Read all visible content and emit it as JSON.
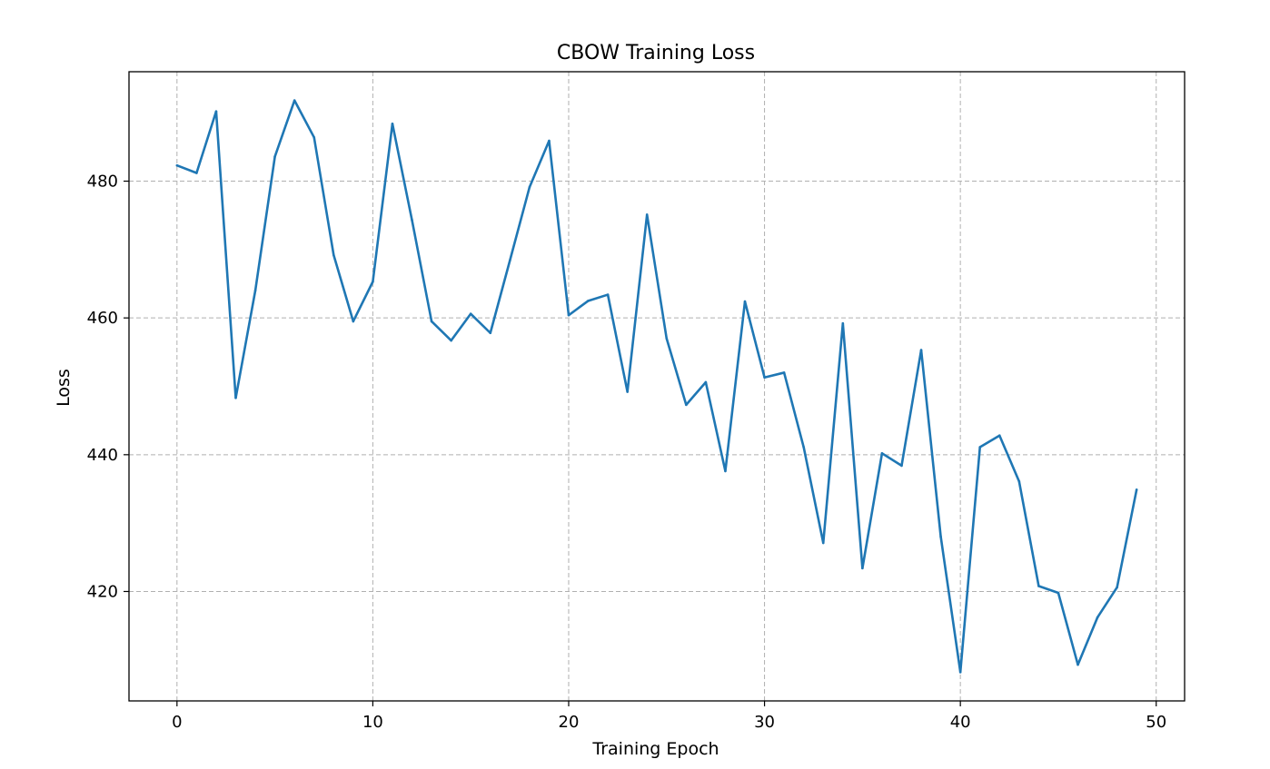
{
  "chart_data": {
    "type": "line",
    "title": "CBOW Training Loss",
    "xlabel": "Training Epoch",
    "ylabel": "Loss",
    "xlim": [
      -2.45,
      51.45
    ],
    "ylim": [
      404,
      496
    ],
    "xticks": [
      0,
      10,
      20,
      30,
      40,
      50
    ],
    "yticks": [
      420,
      440,
      460,
      480
    ],
    "grid": true,
    "line_color": "#1f77b4",
    "series": [
      {
        "x": [
          0,
          1,
          2,
          3,
          4,
          5,
          6,
          7,
          8,
          9,
          10,
          11,
          12,
          13,
          14,
          15,
          16,
          17,
          18,
          19,
          20,
          21,
          22,
          23,
          24,
          25,
          26,
          27,
          28,
          29,
          30,
          31,
          32,
          33,
          34,
          35,
          36,
          37,
          38,
          39,
          40,
          41,
          42,
          43,
          44,
          45,
          46,
          47,
          48,
          49
        ],
        "values": [
          482.3,
          481.2,
          490.2,
          448.3,
          464.0,
          483.6,
          491.8,
          486.4,
          469.2,
          459.5,
          465.3,
          488.4,
          474.3,
          459.5,
          456.7,
          460.6,
          457.8,
          468.4,
          479.1,
          485.9,
          460.4,
          462.5,
          463.4,
          449.2,
          475.1,
          457.0,
          447.3,
          450.6,
          437.6,
          462.4,
          451.3,
          452.0,
          441.1,
          427.1,
          459.2,
          423.4,
          440.2,
          438.4,
          455.3,
          428.0,
          408.2,
          441.1,
          442.8,
          436.1,
          420.8,
          419.8,
          409.3,
          416.2,
          420.6,
          434.9
        ]
      }
    ]
  }
}
